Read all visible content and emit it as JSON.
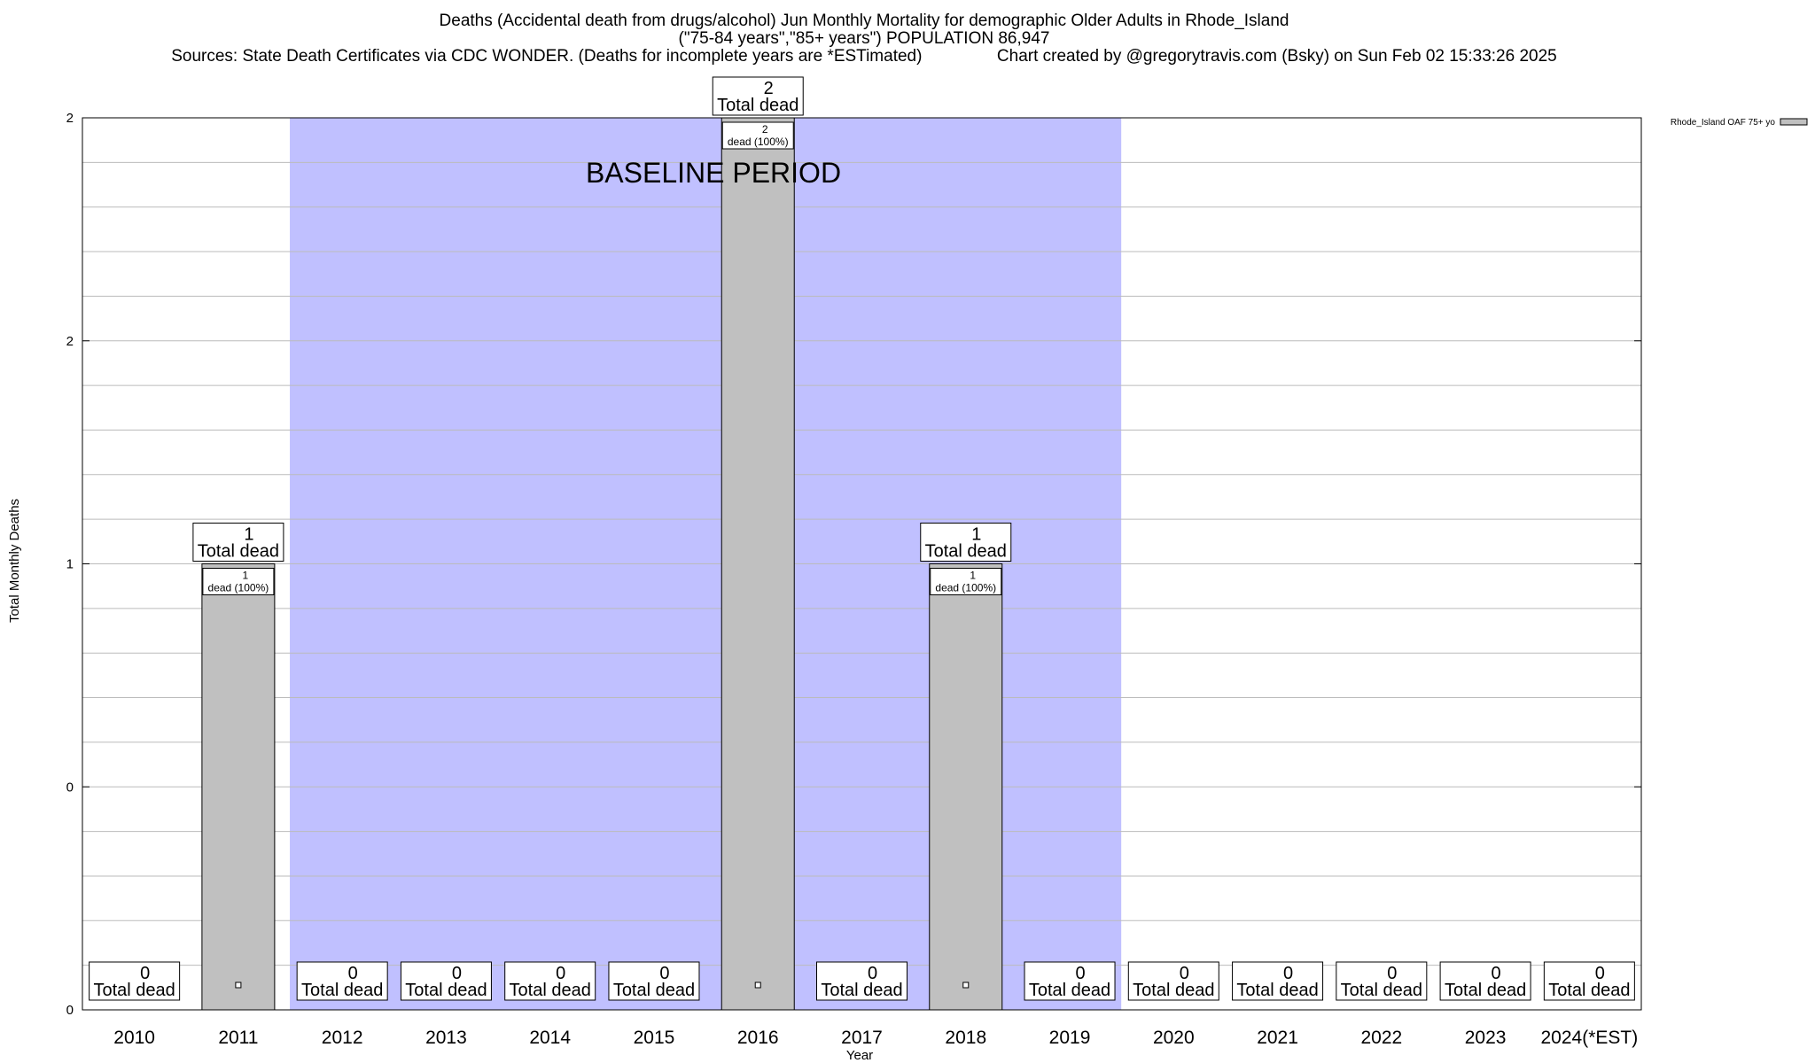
{
  "title": {
    "line1": "Deaths (Accidental death from drugs/alcohol) Jun Monthly Mortality for demographic Older Adults in Rhode_Island",
    "line2": "(\"75-84 years\",\"85+ years\") POPULATION 86,947",
    "line3_left": "Sources: State Death Certificates via CDC WONDER. (Deaths for incomplete years are *ESTimated)",
    "line3_right": "Chart created by @gregorytravis.com (Bsky) on Sun Feb 02 15:33:26 2025"
  },
  "chart_data": {
    "type": "bar",
    "xlabel": "Year",
    "ylabel": "Total Monthly Deaths",
    "categories": [
      "2010",
      "2011",
      "2012",
      "2013",
      "2014",
      "2015",
      "2016",
      "2017",
      "2018",
      "2019",
      "2020",
      "2021",
      "2022",
      "2023",
      "2024(*EST)"
    ],
    "series": [
      {
        "name": "Rhode_Island OAF 75+ yo",
        "values": [
          0,
          1,
          0,
          0,
          0,
          0,
          2,
          0,
          1,
          0,
          0,
          0,
          0,
          0,
          0
        ]
      }
    ],
    "ylim": [
      0,
      2
    ],
    "y_tick_labels": [
      "0",
      "0",
      "1",
      "2",
      "2"
    ],
    "total_label_suffix": "Total dead",
    "inner_label_suffix": "dead (100%)",
    "baseline_period": {
      "label": "BASELINE PERIOD",
      "from": "2012",
      "to": "2019"
    },
    "legend_position": "top-right",
    "grid": true,
    "colors": {
      "bar": "#c0c0c0",
      "baseline": "#c0c0ff"
    }
  }
}
